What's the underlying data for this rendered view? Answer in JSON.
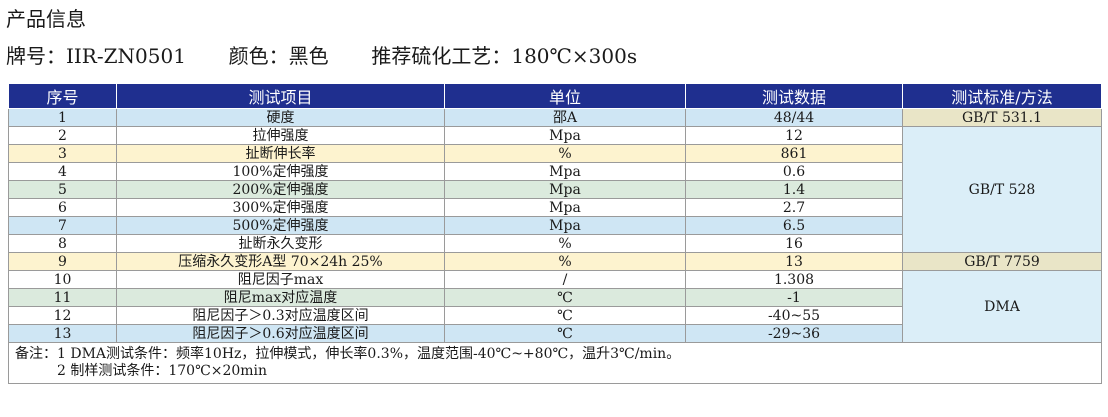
{
  "section_title": "产品信息",
  "meta": {
    "grade_label": "牌号：",
    "grade_value": "IIR-ZN0501",
    "color_label": "颜色：",
    "color_value": "黑色",
    "cure_label": "推荐硫化工艺：",
    "cure_value": "180℃×300s"
  },
  "table": {
    "headers": [
      "序号",
      "测试项目",
      "单位",
      "测试数据",
      "测试标准/方法"
    ],
    "rows": [
      {
        "no": "1",
        "item": "硬度",
        "unit": "邵A",
        "value": "48/44"
      },
      {
        "no": "2",
        "item": "拉伸强度",
        "unit": "Mpa",
        "value": "12"
      },
      {
        "no": "3",
        "item": "扯断伸长率",
        "unit": "%",
        "value": "861"
      },
      {
        "no": "4",
        "item": "100%定伸强度",
        "unit": "Mpa",
        "value": "0.6"
      },
      {
        "no": "5",
        "item": "200%定伸强度",
        "unit": "Mpa",
        "value": "1.4"
      },
      {
        "no": "6",
        "item": "300%定伸强度",
        "unit": "Mpa",
        "value": "2.7"
      },
      {
        "no": "7",
        "item": "500%定伸强度",
        "unit": "Mpa",
        "value": "6.5"
      },
      {
        "no": "8",
        "item": "扯断永久变形",
        "unit": "%",
        "value": "16"
      },
      {
        "no": "9",
        "item": "压缩永久变形A型 70×24h 25%",
        "unit": "%",
        "value": "13"
      },
      {
        "no": "10",
        "item": "阻尼因子max",
        "unit": "/",
        "value": "1.308"
      },
      {
        "no": "11",
        "item": "阻尼max对应温度",
        "unit": "℃",
        "value": "-1"
      },
      {
        "no": "12",
        "item": "阻尼因子＞0.3对应温度区间",
        "unit": "℃",
        "value": "-40~55"
      },
      {
        "no": "13",
        "item": "阻尼因子＞0.6对应温度区间",
        "unit": "℃",
        "value": "-29~36"
      }
    ],
    "standards": [
      "GB/T 531.1",
      "GB/T 528",
      "GB/T 7759",
      "DMA"
    ]
  },
  "notes": {
    "label": "备注：",
    "line1": "1 DMA测试条件：频率10Hz，拉伸模式，伸长率0.3%，温度范围-40℃~+80℃，温升3℃/min。",
    "line2": "2 制样测试条件：170℃×20min"
  },
  "colors": {
    "header_bg": "#1f2f8f",
    "row_blue": "#cfe6f4",
    "row_yellow": "#fdf3cf",
    "row_green": "#dbeadd",
    "std_tan": "#e9e5c7",
    "std_blue": "#dbeef8"
  }
}
